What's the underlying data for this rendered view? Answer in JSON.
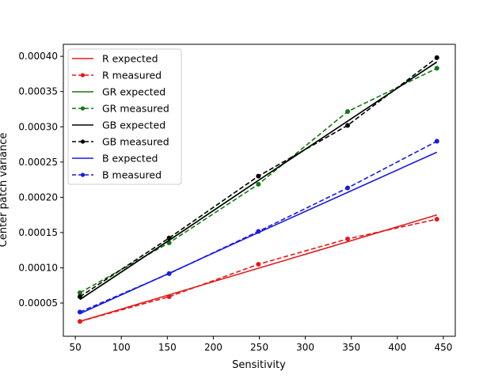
{
  "chart_data": {
    "type": "line",
    "title": "",
    "xlabel": "Sensitivity",
    "ylabel": "Center patch variance",
    "xlim": [
      37,
      463
    ],
    "ylim": [
      2.9e-06,
      0.000417
    ],
    "xticks": [
      50,
      100,
      150,
      200,
      250,
      300,
      350,
      400,
      450
    ],
    "yticks": [
      5e-05,
      0.0001,
      0.00015,
      0.0002,
      0.00025,
      0.0003,
      0.00035,
      0.0004
    ],
    "ytick_labels": [
      "0.00005",
      "0.00010",
      "0.00015",
      "0.00020",
      "0.00025",
      "0.00030",
      "0.00035",
      "0.00040"
    ],
    "grid": false,
    "legend_position": "top-left",
    "x": [
      55,
      152,
      249,
      346,
      443
    ],
    "series": [
      {
        "name": "R expected",
        "color": "#e41a1c",
        "style": "solid",
        "values": [
          2.4e-05,
          6.17e-05,
          9.94e-05,
          0.000137,
          0.000175
        ]
      },
      {
        "name": "R measured",
        "color": "#e41a1c",
        "style": "dashed-marker",
        "values": [
          2.4e-05,
          5.9e-05,
          0.000105,
          0.000141,
          0.000169
        ]
      },
      {
        "name": "GR expected",
        "color": "#117711",
        "style": "solid",
        "values": [
          5.5e-05,
          0.000139,
          0.000224,
          0.000308,
          0.000392
        ]
      },
      {
        "name": "GR measured",
        "color": "#117711",
        "style": "dashed-marker",
        "values": [
          6.46e-05,
          0.0001355,
          0.0002185,
          0.0003216,
          0.000383
        ]
      },
      {
        "name": "GB expected",
        "color": "#000000",
        "style": "solid",
        "values": [
          5.5e-05,
          0.000139,
          0.000224,
          0.000308,
          0.000392
        ]
      },
      {
        "name": "GB measured",
        "color": "#000000",
        "style": "dashed-marker",
        "values": [
          5.9e-05,
          0.0001423,
          0.00023,
          0.000302,
          0.000398
        ]
      },
      {
        "name": "B expected",
        "color": "#1a1adf",
        "style": "solid",
        "values": [
          3.5e-05,
          9.23e-05,
          0.00015,
          0.000207,
          0.000264
        ]
      },
      {
        "name": "B measured",
        "color": "#1a1adf",
        "style": "dashed-marker",
        "values": [
          3.73e-05,
          9.18e-05,
          0.0001516,
          0.0002133,
          0.0002795
        ]
      }
    ]
  }
}
